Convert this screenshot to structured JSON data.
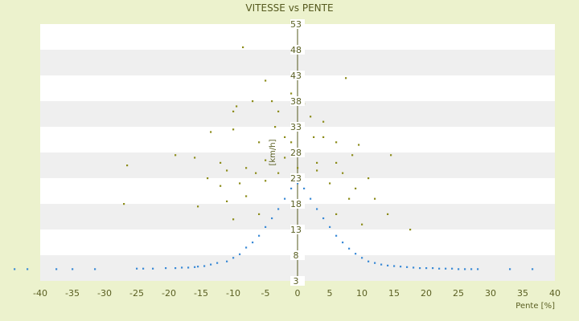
{
  "chart_data": {
    "type": "scatter",
    "title": "VITESSE vs PENTE",
    "xlabel": "Pente [%]",
    "ylabel": "[km/h]",
    "xlim": [
      -40,
      40
    ],
    "ylim": [
      3,
      53
    ],
    "x_ticks": [
      -40,
      -35,
      -30,
      -25,
      -20,
      -15,
      -10,
      -5,
      0,
      5,
      10,
      15,
      20,
      25,
      30,
      35,
      40
    ],
    "y_ticks": [
      3,
      8,
      13,
      18,
      23,
      28,
      33,
      38,
      43,
      48,
      53
    ],
    "grid": "horizontal alternating bands",
    "legend": "none",
    "colors": {
      "background": "#ecf2cd",
      "plot_band_light": "#ffffff",
      "plot_band_dark": "#efefef",
      "series_low": "#3a8ad6",
      "series_high": "#8c8c1a",
      "zero_axis": "#55591e"
    },
    "series": [
      {
        "color": "#3a8ad6",
        "points": [
          [
            -44,
            5.3
          ],
          [
            -42,
            5.3
          ],
          [
            -37.5,
            5.3
          ],
          [
            -35,
            5.3
          ],
          [
            -31.5,
            5.3
          ],
          [
            -25,
            5.4
          ],
          [
            -24,
            5.4
          ],
          [
            -22.5,
            5.4
          ],
          [
            -20.5,
            5.5
          ],
          [
            -19,
            5.5
          ],
          [
            -18,
            5.6
          ],
          [
            -17,
            5.6
          ],
          [
            -16,
            5.7
          ],
          [
            -15.5,
            5.8
          ],
          [
            -14.5,
            5.9
          ],
          [
            -13.5,
            6.2
          ],
          [
            -12.5,
            6.5
          ],
          [
            -11,
            6.8
          ],
          [
            -10,
            7.5
          ],
          [
            -9,
            8.2
          ],
          [
            -8,
            9.5
          ],
          [
            -7,
            10.5
          ],
          [
            -6,
            11.8
          ],
          [
            -5,
            13.5
          ],
          [
            -4,
            15.2
          ],
          [
            -3,
            17
          ],
          [
            -2,
            19
          ],
          [
            -1,
            21
          ],
          [
            0,
            22
          ],
          [
            1,
            21
          ],
          [
            2,
            19
          ],
          [
            3,
            17
          ],
          [
            4,
            15.2
          ],
          [
            5,
            13.5
          ],
          [
            6,
            11.8
          ],
          [
            7,
            10.5
          ],
          [
            8,
            9.3
          ],
          [
            9,
            8.3
          ],
          [
            10,
            7.5
          ],
          [
            11,
            6.8
          ],
          [
            12,
            6.5
          ],
          [
            13,
            6.2
          ],
          [
            14,
            6
          ],
          [
            15,
            5.9
          ],
          [
            16,
            5.8
          ],
          [
            17,
            5.7
          ],
          [
            18,
            5.6
          ],
          [
            19,
            5.5
          ],
          [
            20,
            5.5
          ],
          [
            21,
            5.5
          ],
          [
            22,
            5.4
          ],
          [
            23,
            5.4
          ],
          [
            24,
            5.4
          ],
          [
            25,
            5.3
          ],
          [
            26,
            5.3
          ],
          [
            27,
            5.3
          ],
          [
            28,
            5.3
          ],
          [
            33,
            5.3
          ],
          [
            36.5,
            5.3
          ]
        ]
      },
      {
        "color": "#8c8c1a",
        "points": [
          [
            -8.5,
            48.5
          ],
          [
            7.5,
            42.5
          ],
          [
            -5,
            42
          ],
          [
            -10,
            36
          ],
          [
            -9.5,
            37
          ],
          [
            -7,
            38
          ],
          [
            -4,
            38
          ],
          [
            -3,
            36
          ],
          [
            -1,
            39.5
          ],
          [
            1,
            37.5
          ],
          [
            2,
            35
          ],
          [
            4,
            34
          ],
          [
            -13.5,
            32
          ],
          [
            -10,
            32.5
          ],
          [
            -6,
            30
          ],
          [
            -3.5,
            33
          ],
          [
            -2,
            31
          ],
          [
            -1,
            30
          ],
          [
            0.5,
            33
          ],
          [
            2.5,
            31
          ],
          [
            4,
            31
          ],
          [
            6,
            30
          ],
          [
            9.5,
            29.5
          ],
          [
            -26.5,
            25.5
          ],
          [
            -19,
            27.5
          ],
          [
            -16,
            27
          ],
          [
            -12,
            26
          ],
          [
            -8,
            25
          ],
          [
            -5,
            26.5
          ],
          [
            -2,
            27
          ],
          [
            3,
            26
          ],
          [
            6,
            26
          ],
          [
            8.5,
            27.5
          ],
          [
            14.5,
            27.5
          ],
          [
            -14,
            23
          ],
          [
            -11,
            24.5
          ],
          [
            -6.5,
            24
          ],
          [
            -3,
            24
          ],
          [
            0,
            25
          ],
          [
            3,
            24.5
          ],
          [
            7,
            24
          ],
          [
            11,
            23
          ],
          [
            -12,
            21.5
          ],
          [
            -9,
            22
          ],
          [
            -5,
            22.5
          ],
          [
            5,
            22
          ],
          [
            9,
            21
          ],
          [
            -27,
            18
          ],
          [
            -15.5,
            17.5
          ],
          [
            -11,
            18.5
          ],
          [
            -8,
            19.5
          ],
          [
            8,
            19
          ],
          [
            12,
            19
          ],
          [
            14,
            16
          ],
          [
            -10,
            15
          ],
          [
            -6,
            16
          ],
          [
            6,
            16
          ],
          [
            10,
            14
          ],
          [
            17.5,
            13
          ]
        ]
      }
    ]
  }
}
